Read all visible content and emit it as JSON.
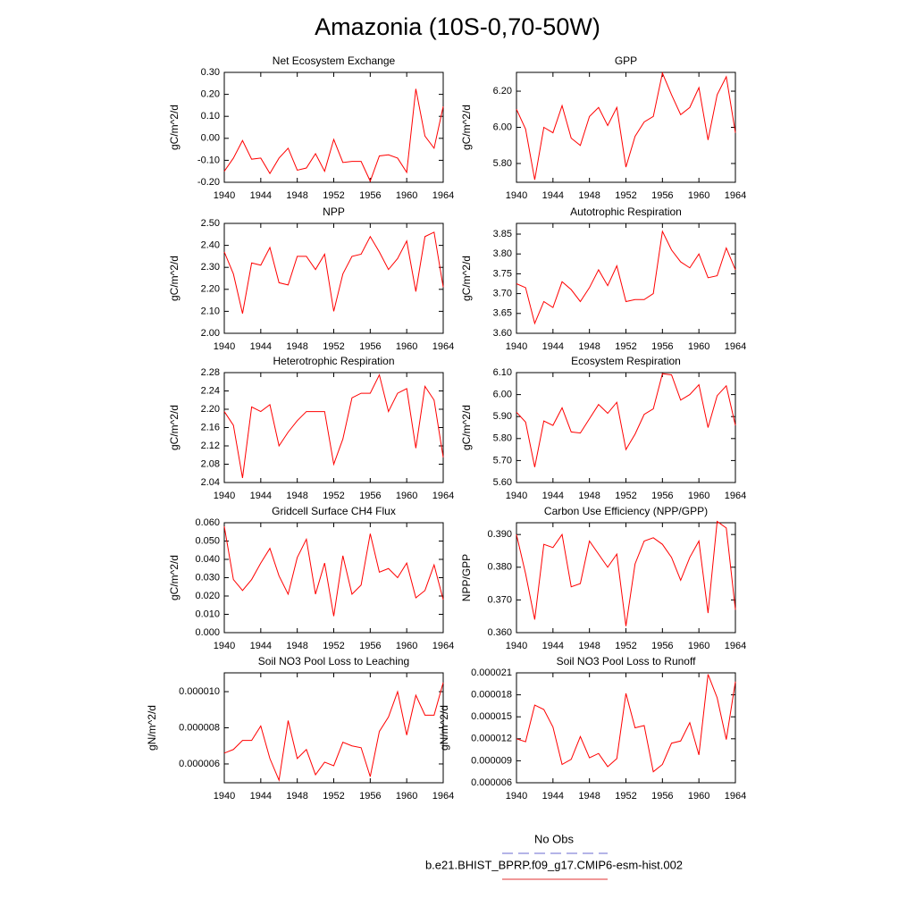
{
  "title": "Amazonia (10S-0,70-50W)",
  "legend": [
    {
      "name": "No Obs",
      "color": "#6a6ad0",
      "dash": true
    },
    {
      "name": "b.e21.BHIST_BPRP.f09_g17.CMIP6-esm-hist.002",
      "color": "#e03030",
      "dash": false
    }
  ],
  "chart_data": [
    {
      "type": "line",
      "title": "Net Ecosystem Exchange",
      "ylabel": "gC/m^2/d",
      "color": "#ff0000",
      "x": [
        1940,
        1941,
        1942,
        1943,
        1944,
        1945,
        1946,
        1947,
        1948,
        1949,
        1950,
        1951,
        1952,
        1953,
        1954,
        1955,
        1956,
        1957,
        1958,
        1959,
        1960,
        1961,
        1962,
        1963,
        1964
      ],
      "values": [
        -0.15,
        -0.09,
        -0.01,
        -0.095,
        -0.09,
        -0.16,
        -0.09,
        -0.045,
        -0.145,
        -0.135,
        -0.07,
        -0.15,
        -0.005,
        -0.11,
        -0.105,
        -0.105,
        -0.195,
        -0.08,
        -0.075,
        -0.09,
        -0.155,
        0.225,
        0.01,
        -0.045,
        0.145
      ],
      "xlim": [
        1940,
        1964
      ],
      "xticks": [
        1940,
        1944,
        1948,
        1952,
        1956,
        1960,
        1964
      ],
      "ylim": [
        -0.2,
        0.3
      ],
      "yticks": [
        {
          "value": -0.2,
          "label": "-0.20"
        },
        {
          "value": -0.1,
          "label": "-0.10"
        },
        {
          "value": 0,
          "label": "0.00"
        },
        {
          "value": 0.1,
          "label": "0.10"
        },
        {
          "value": 0.2,
          "label": "0.20"
        },
        {
          "value": 0.3,
          "label": "0.30"
        }
      ]
    },
    {
      "type": "line",
      "title": "GPP",
      "ylabel": "gC/m^2/d",
      "color": "#ff0000",
      "x": [
        1940,
        1941,
        1942,
        1943,
        1944,
        1945,
        1946,
        1947,
        1948,
        1949,
        1950,
        1951,
        1952,
        1953,
        1954,
        1955,
        1956,
        1957,
        1958,
        1959,
        1960,
        1961,
        1962,
        1963,
        1964
      ],
      "values": [
        6.1,
        5.99,
        5.71,
        6.0,
        5.97,
        6.12,
        5.94,
        5.9,
        6.06,
        6.11,
        6.01,
        6.11,
        5.78,
        5.95,
        6.03,
        6.06,
        6.3,
        6.18,
        6.07,
        6.11,
        6.22,
        5.93,
        6.18,
        6.28,
        5.97
      ],
      "xlim": [
        1940,
        1964
      ],
      "xticks": [
        1940,
        1944,
        1948,
        1952,
        1956,
        1960,
        1964
      ],
      "ylim": [
        5.696,
        6.304
      ],
      "yticks": [
        {
          "value": 5.8,
          "label": "5.80"
        },
        {
          "value": 6,
          "label": "6.00"
        },
        {
          "value": 6.2,
          "label": "6.20"
        }
      ]
    },
    {
      "type": "line",
      "title": "NPP",
      "ylabel": "gC/m^2/d",
      "color": "#ff0000",
      "x": [
        1940,
        1941,
        1942,
        1943,
        1944,
        1945,
        1946,
        1947,
        1948,
        1949,
        1950,
        1951,
        1952,
        1953,
        1954,
        1955,
        1956,
        1957,
        1958,
        1959,
        1960,
        1961,
        1962,
        1963,
        1964
      ],
      "values": [
        2.37,
        2.27,
        2.09,
        2.32,
        2.31,
        2.39,
        2.23,
        2.22,
        2.35,
        2.35,
        2.29,
        2.36,
        2.1,
        2.27,
        2.35,
        2.36,
        2.44,
        2.37,
        2.29,
        2.34,
        2.42,
        2.19,
        2.44,
        2.46,
        2.21
      ],
      "xlim": [
        1940,
        1964
      ],
      "xticks": [
        1940,
        1944,
        1948,
        1952,
        1956,
        1960,
        1964
      ],
      "ylim": [
        2.0,
        2.5
      ],
      "yticks": [
        {
          "value": 2,
          "label": "2.00"
        },
        {
          "value": 2.1,
          "label": "2.10"
        },
        {
          "value": 2.2,
          "label": "2.20"
        },
        {
          "value": 2.3,
          "label": "2.30"
        },
        {
          "value": 2.4,
          "label": "2.40"
        },
        {
          "value": 2.5,
          "label": "2.50"
        }
      ]
    },
    {
      "type": "line",
      "title": "Autotrophic Respiration",
      "ylabel": "gC/m^2/d",
      "color": "#ff0000",
      "x": [
        1940,
        1941,
        1942,
        1943,
        1944,
        1945,
        1946,
        1947,
        1948,
        1949,
        1950,
        1951,
        1952,
        1953,
        1954,
        1955,
        1956,
        1957,
        1958,
        1959,
        1960,
        1961,
        1962,
        1963,
        1964
      ],
      "values": [
        3.725,
        3.715,
        3.625,
        3.68,
        3.665,
        3.73,
        3.71,
        3.68,
        3.715,
        3.76,
        3.72,
        3.77,
        3.68,
        3.685,
        3.685,
        3.7,
        3.857,
        3.81,
        3.78,
        3.765,
        3.8,
        3.74,
        3.745,
        3.815,
        3.76
      ],
      "xlim": [
        1940,
        1964
      ],
      "xticks": [
        1940,
        1944,
        1948,
        1952,
        1956,
        1960,
        1964
      ],
      "ylim": [
        3.6,
        3.877
      ],
      "yticks": [
        {
          "value": 3.6,
          "label": "3.60"
        },
        3.65,
        {
          "value": 3.7,
          "label": "3.70"
        },
        3.75,
        {
          "value": 3.8,
          "label": "3.80"
        },
        3.85
      ]
    },
    {
      "type": "line",
      "title": "Heterotrophic Respiration",
      "ylabel": "gC/m^2/d",
      "color": "#ff0000",
      "x": [
        1940,
        1941,
        1942,
        1943,
        1944,
        1945,
        1946,
        1947,
        1948,
        1949,
        1950,
        1951,
        1952,
        1953,
        1954,
        1955,
        1956,
        1957,
        1958,
        1959,
        1960,
        1961,
        1962,
        1963,
        1964
      ],
      "values": [
        2.195,
        2.165,
        2.05,
        2.205,
        2.195,
        2.21,
        2.12,
        2.15,
        2.175,
        2.195,
        2.195,
        2.195,
        2.08,
        2.135,
        2.225,
        2.235,
        2.235,
        2.275,
        2.195,
        2.235,
        2.245,
        2.115,
        2.25,
        2.22,
        2.095
      ],
      "xlim": [
        1940,
        1964
      ],
      "xticks": [
        1940,
        1944,
        1948,
        1952,
        1956,
        1960,
        1964
      ],
      "ylim": [
        2.04,
        2.28
      ],
      "yticks": [
        2.04,
        2.08,
        2.12,
        2.16,
        {
          "value": 2.2,
          "label": "2.20"
        },
        2.24,
        2.28
      ]
    },
    {
      "type": "line",
      "title": "Ecosystem Respiration",
      "ylabel": "gC/m^2/d",
      "color": "#ff0000",
      "x": [
        1940,
        1941,
        1942,
        1943,
        1944,
        1945,
        1946,
        1947,
        1948,
        1949,
        1950,
        1951,
        1952,
        1953,
        1954,
        1955,
        1956,
        1957,
        1958,
        1959,
        1960,
        1961,
        1962,
        1963,
        1964
      ],
      "values": [
        5.92,
        5.875,
        5.67,
        5.88,
        5.86,
        5.94,
        5.83,
        5.825,
        5.89,
        5.955,
        5.915,
        5.965,
        5.75,
        5.82,
        5.91,
        5.935,
        6.095,
        6.09,
        5.975,
        6.0,
        6.045,
        5.85,
        5.995,
        6.04,
        5.86
      ],
      "xlim": [
        1940,
        1964
      ],
      "xticks": [
        1940,
        1944,
        1948,
        1952,
        1956,
        1960,
        1964
      ],
      "ylim": [
        5.6,
        6.1
      ],
      "yticks": [
        {
          "value": 5.6,
          "label": "5.60"
        },
        {
          "value": 5.7,
          "label": "5.70"
        },
        {
          "value": 5.8,
          "label": "5.80"
        },
        {
          "value": 5.9,
          "label": "5.90"
        },
        {
          "value": 6,
          "label": "6.00"
        },
        {
          "value": 6.1,
          "label": "6.10"
        }
      ]
    },
    {
      "type": "line",
      "title": "Gridcell Surface CH4 Flux",
      "ylabel": "gC/m^2/d",
      "color": "#ff0000",
      "x": [
        1940,
        1941,
        1942,
        1943,
        1944,
        1945,
        1946,
        1947,
        1948,
        1949,
        1950,
        1951,
        1952,
        1953,
        1954,
        1955,
        1956,
        1957,
        1958,
        1959,
        1960,
        1961,
        1962,
        1963,
        1964
      ],
      "values": [
        0.058,
        0.029,
        0.023,
        0.029,
        0.038,
        0.046,
        0.031,
        0.021,
        0.041,
        0.051,
        0.021,
        0.038,
        0.009,
        0.042,
        0.021,
        0.026,
        0.054,
        0.033,
        0.035,
        0.03,
        0.038,
        0.019,
        0.023,
        0.037,
        0.018
      ],
      "xlim": [
        1940,
        1964
      ],
      "xticks": [
        1940,
        1944,
        1948,
        1952,
        1956,
        1960,
        1964
      ],
      "ylim": [
        0,
        0.06
      ],
      "yticks": [
        {
          "value": 0,
          "label": "0.000"
        },
        {
          "value": 0.01,
          "label": "0.010"
        },
        {
          "value": 0.02,
          "label": "0.020"
        },
        {
          "value": 0.03,
          "label": "0.030"
        },
        {
          "value": 0.04,
          "label": "0.040"
        },
        {
          "value": 0.05,
          "label": "0.050"
        },
        {
          "value": 0.06,
          "label": "0.060"
        }
      ]
    },
    {
      "type": "line",
      "title": "Carbon Use Efficiency (NPP/GPP)",
      "ylabel": "NPP/GPP",
      "color": "#ff0000",
      "x": [
        1940,
        1941,
        1942,
        1943,
        1944,
        1945,
        1946,
        1947,
        1948,
        1949,
        1950,
        1951,
        1952,
        1953,
        1954,
        1955,
        1956,
        1957,
        1958,
        1959,
        1960,
        1961,
        1962,
        1963,
        1964
      ],
      "values": [
        0.39,
        0.378,
        0.364,
        0.387,
        0.386,
        0.39,
        0.374,
        0.375,
        0.388,
        0.384,
        0.38,
        0.384,
        0.362,
        0.381,
        0.388,
        0.389,
        0.387,
        0.383,
        0.376,
        0.383,
        0.388,
        0.366,
        0.394,
        0.392,
        0.367
      ],
      "xlim": [
        1940,
        1964
      ],
      "xticks": [
        1940,
        1944,
        1948,
        1952,
        1956,
        1960,
        1964
      ],
      "ylim": [
        0.36,
        0.3936
      ],
      "yticks": [
        {
          "value": 0.36,
          "label": "0.360"
        },
        {
          "value": 0.37,
          "label": "0.370"
        },
        {
          "value": 0.38,
          "label": "0.380"
        },
        {
          "value": 0.39,
          "label": "0.390"
        }
      ]
    },
    {
      "type": "line",
      "title": "Soil NO3 Pool Loss to Leaching",
      "ylabel": "gN/m^2/d",
      "color": "#ff0000",
      "x": [
        1940,
        1941,
        1942,
        1943,
        1944,
        1945,
        1946,
        1947,
        1948,
        1949,
        1950,
        1951,
        1952,
        1953,
        1954,
        1955,
        1956,
        1957,
        1958,
        1959,
        1960,
        1961,
        1962,
        1963,
        1964
      ],
      "values": [
        6.6e-06,
        6.8e-06,
        7.3e-06,
        7.3e-06,
        8.1e-06,
        6.3e-06,
        5.1e-06,
        8.4e-06,
        6.3e-06,
        6.8e-06,
        5.4e-06,
        6.1e-06,
        5.9e-06,
        7.2e-06,
        7e-06,
        6.9e-06,
        5.3e-06,
        7.8e-06,
        8.6e-06,
        1e-05,
        7.6e-06,
        9.8e-06,
        8.7e-06,
        8.7e-06,
        1.05e-05
      ],
      "xlim": [
        1940,
        1964
      ],
      "xticks": [
        1940,
        1944,
        1948,
        1952,
        1956,
        1960,
        1964
      ],
      "ylim": [
        4.96e-06,
        1.104e-05
      ],
      "yticks": [
        6e-06,
        8e-06,
        {
          "value": 1e-05,
          "label": "0.000010"
        }
      ]
    },
    {
      "type": "line",
      "title": "Soil NO3 Pool Loss to Runoff",
      "ylabel": "gN/m^2/d",
      "color": "#ff0000",
      "x": [
        1940,
        1941,
        1942,
        1943,
        1944,
        1945,
        1946,
        1947,
        1948,
        1949,
        1950,
        1951,
        1952,
        1953,
        1954,
        1955,
        1956,
        1957,
        1958,
        1959,
        1960,
        1961,
        1962,
        1963,
        1964
      ],
      "values": [
        1.2e-05,
        1.16e-05,
        1.66e-05,
        1.6e-05,
        1.36e-05,
        8.5e-06,
        9.2e-06,
        1.23e-05,
        9.4e-06,
        1e-05,
        8.2e-06,
        9.3e-06,
        1.82e-05,
        1.35e-05,
        1.38e-05,
        7.5e-06,
        8.5e-06,
        1.14e-05,
        1.17e-05,
        1.42e-05,
        9.8e-06,
        2.08e-05,
        1.76e-05,
        1.19e-05,
        1.98e-05
      ],
      "xlim": [
        1940,
        1964
      ],
      "xticks": [
        1940,
        1944,
        1948,
        1952,
        1956,
        1960,
        1964
      ],
      "ylim": [
        6e-06,
        2.1e-05
      ],
      "yticks": [
        6e-06,
        9e-06,
        1.2e-05,
        1.5e-05,
        1.8e-05,
        2.1e-05
      ]
    }
  ]
}
